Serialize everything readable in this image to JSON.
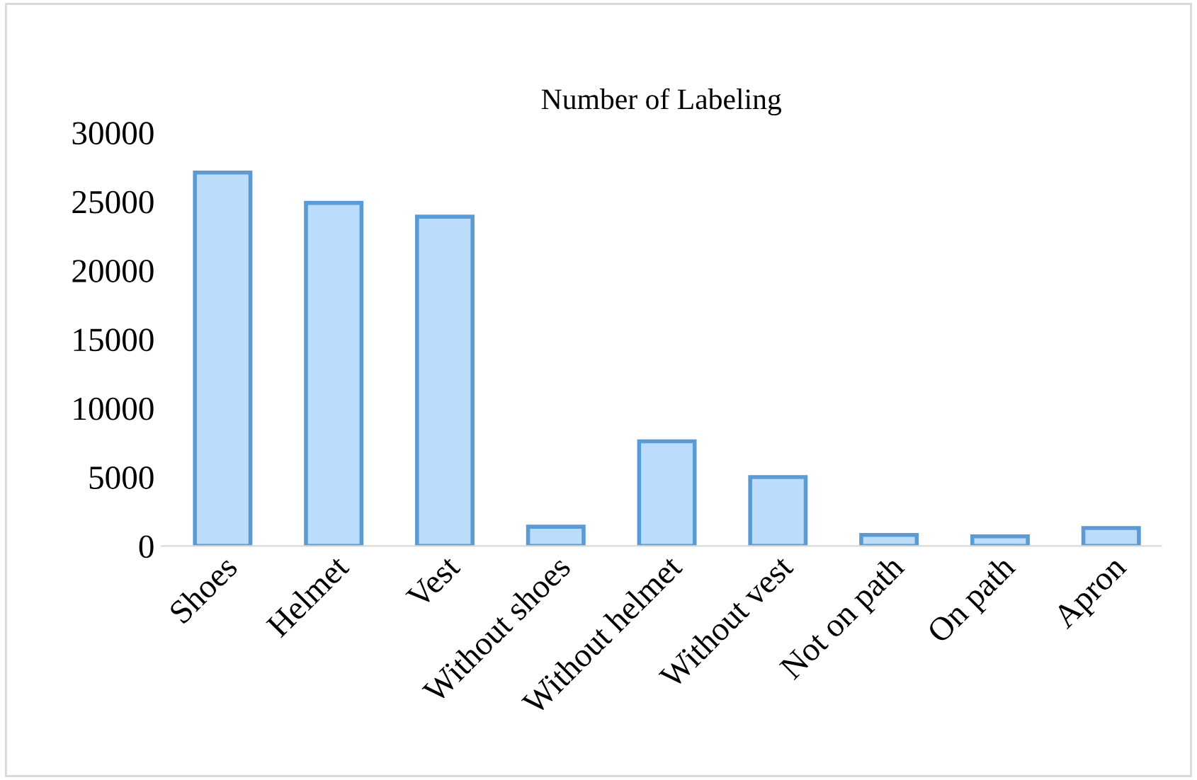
{
  "chart_data": {
    "type": "bar",
    "title": "Number of Labeling",
    "categories": [
      "Shoes",
      "Helmet",
      "Vest",
      "Without shoes",
      "Without helmet",
      "Without vest",
      "Not on path",
      "On path",
      "Apron"
    ],
    "values": [
      27100,
      24900,
      23900,
      1400,
      7600,
      5000,
      800,
      700,
      1300
    ],
    "color": "#bcdcfb",
    "ylim": [
      0,
      30000
    ],
    "yticks": [
      0,
      5000,
      10000,
      15000,
      20000,
      25000,
      30000
    ],
    "grid": false
  }
}
